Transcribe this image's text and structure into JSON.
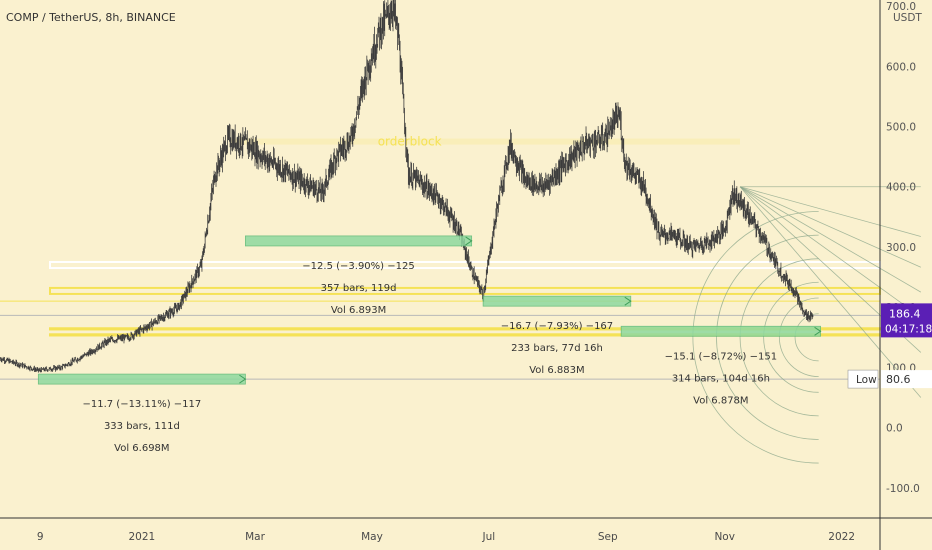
{
  "chart_data": {
    "type": "candlestick",
    "title": "COMP / TetherUS, 8h, BINANCE",
    "currency_label": "USDT",
    "y_ticks": [
      700,
      600,
      500,
      400,
      300,
      200,
      100,
      0,
      -100
    ],
    "y_tick_labels": [
      "700.0",
      "600.0",
      "500.0",
      "400.0",
      "300.0",
      "200.0",
      "100.0",
      "0.0",
      "-100.0"
    ],
    "ylim": [
      -150,
      710
    ],
    "x_ticks": [
      "9",
      "2021",
      "Mar",
      "May",
      "Jul",
      "Sep",
      "Nov",
      "2022"
    ],
    "x_tick_dates": [
      "2020-11-09",
      "2021-01-01",
      "2021-03-01",
      "2021-05-01",
      "2021-07-01",
      "2021-09-01",
      "2021-11-01",
      "2022-01-01"
    ],
    "xlim": [
      "2020-10-19",
      "2022-01-21"
    ],
    "series_path": [
      [
        "2020-10-19",
        115
      ],
      [
        "2020-11-08",
        95
      ],
      [
        "2020-11-20",
        100
      ],
      [
        "2020-12-05",
        125
      ],
      [
        "2020-12-15",
        145
      ],
      [
        "2020-12-25",
        150
      ],
      [
        "2021-01-05",
        170
      ],
      [
        "2021-01-20",
        200
      ],
      [
        "2021-02-01",
        270
      ],
      [
        "2021-02-08",
        420
      ],
      [
        "2021-02-15",
        480
      ],
      [
        "2021-02-25",
        470
      ],
      [
        "2021-03-05",
        450
      ],
      [
        "2021-03-15",
        430
      ],
      [
        "2021-03-25",
        410
      ],
      [
        "2021-04-05",
        390
      ],
      [
        "2021-04-12",
        450
      ],
      [
        "2021-04-20",
        480
      ],
      [
        "2021-04-28",
        590
      ],
      [
        "2021-05-05",
        660
      ],
      [
        "2021-05-12",
        700
      ],
      [
        "2021-05-15",
        640
      ],
      [
        "2021-05-20",
        420
      ],
      [
        "2021-05-25",
        410
      ],
      [
        "2021-06-05",
        380
      ],
      [
        "2021-06-15",
        330
      ],
      [
        "2021-06-22",
        260
      ],
      [
        "2021-06-28",
        220
      ],
      [
        "2021-07-05",
        360
      ],
      [
        "2021-07-12",
        470
      ],
      [
        "2021-07-20",
        410
      ],
      [
        "2021-07-30",
        400
      ],
      [
        "2021-08-10",
        440
      ],
      [
        "2021-08-20",
        470
      ],
      [
        "2021-08-30",
        480
      ],
      [
        "2021-09-07",
        520
      ],
      [
        "2021-09-10",
        440
      ],
      [
        "2021-09-20",
        400
      ],
      [
        "2021-09-28",
        320
      ],
      [
        "2021-10-05",
        320
      ],
      [
        "2021-10-15",
        300
      ],
      [
        "2021-10-25",
        310
      ],
      [
        "2021-11-01",
        330
      ],
      [
        "2021-11-05",
        390
      ],
      [
        "2021-11-10",
        370
      ],
      [
        "2021-11-20",
        320
      ],
      [
        "2021-11-28",
        270
      ],
      [
        "2021-12-02",
        250
      ],
      [
        "2021-12-08",
        225
      ],
      [
        "2021-12-12",
        190
      ],
      [
        "2021-12-15",
        185
      ],
      [
        "2021-12-17",
        186.4
      ]
    ],
    "last_price": {
      "value": 186.4,
      "label": "186.4",
      "countdown": "04:17:18",
      "color": "#5b1fb5"
    },
    "low_marker": {
      "label": "Low",
      "value": 80.6,
      "value_label": "80.6"
    },
    "horizontal_zones": [
      {
        "y1": 265,
        "y2": 275,
        "color": "#ffffff"
      },
      {
        "y1": 222,
        "y2": 232,
        "color": "#f5e256"
      },
      {
        "y1": 163,
        "y2": 165,
        "color": "#f5e256"
      },
      {
        "y1": 153,
        "y2": 155,
        "color": "#f5e256"
      }
    ],
    "horizontal_lines": [
      {
        "y": 186.4,
        "color": "#b8b8b8"
      },
      {
        "y": 80.6,
        "color": "#b8b8b8"
      },
      {
        "y": 210,
        "color": "#f5e256"
      }
    ],
    "orderblock": {
      "text": "orderblock",
      "y1": 470,
      "y2": 480,
      "date": "2021-05-04",
      "color": "#f5e256"
    },
    "measurements": [
      {
        "start": "2020-11-08",
        "end": "2021-02-24",
        "y": 80.6,
        "lines": [
          "−11.7 (−13.11%) −117",
          "333 bars, 111d",
          "Vol 6.698M"
        ]
      },
      {
        "start": "2021-02-24",
        "end": "2021-06-22",
        "y": 310,
        "lines": [
          "−12.5 (−3.90%) −125",
          "357 bars, 119d",
          "Vol 6.893M"
        ]
      },
      {
        "start": "2021-06-28",
        "end": "2021-09-13",
        "y": 210,
        "lines": [
          "−16.7 (−7.93%) −167",
          "233 bars, 77d 16h",
          "Vol 6.883M"
        ]
      },
      {
        "start": "2021-09-08",
        "end": "2021-12-21",
        "y": 160,
        "lines": [
          "−15.1 (−8.72%) −151",
          "314 bars, 104d 16h",
          "Vol 6.878M"
        ]
      }
    ],
    "fib_fan": {
      "origin_date": "2021-11-09",
      "origin_y": 400,
      "end_date": "2021-12-20",
      "end_y": 150,
      "color": "#8aa58a"
    },
    "colors": {
      "background": "#faf1cf",
      "candle": "#3c3c3c",
      "measure_bar": "#8fd9a0",
      "axis_text": "#4a4a4a"
    }
  }
}
